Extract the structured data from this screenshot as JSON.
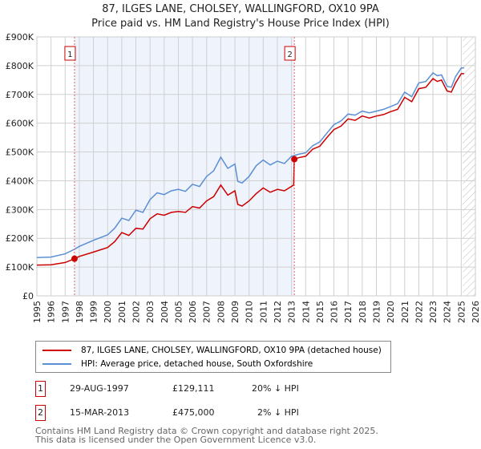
{
  "chart_data": {
    "type": "line",
    "title": "87, ILGES LANE, CHOLSEY, WALLINGFORD, OX10 9PA",
    "subtitle": "Price paid vs. HM Land Registry's House Price Index (HPI)",
    "xlim": [
      1995,
      2026
    ],
    "ylim": [
      0,
      900000
    ],
    "yticks": [
      {
        "v": 0,
        "label": "£0"
      },
      {
        "v": 100000,
        "label": "£100K"
      },
      {
        "v": 200000,
        "label": "£200K"
      },
      {
        "v": 300000,
        "label": "£300K"
      },
      {
        "v": 400000,
        "label": "£400K"
      },
      {
        "v": 500000,
        "label": "£500K"
      },
      {
        "v": 600000,
        "label": "£600K"
      },
      {
        "v": 700000,
        "label": "£700K"
      },
      {
        "v": 800000,
        "label": "£800K"
      },
      {
        "v": 900000,
        "label": "£900K"
      }
    ],
    "xticks": [
      "1995",
      "1996",
      "1997",
      "1998",
      "1999",
      "2000",
      "2001",
      "2002",
      "2003",
      "2004",
      "2005",
      "2006",
      "2007",
      "2008",
      "2009",
      "2010",
      "2011",
      "2012",
      "2013",
      "2014",
      "2015",
      "2016",
      "2017",
      "2018",
      "2019",
      "2020",
      "2021",
      "2022",
      "2023",
      "2024",
      "2025",
      "2026"
    ],
    "grid": true,
    "shaded_range": [
      1997.66,
      2013.2
    ],
    "hatched_from": 2025.1,
    "series": [
      {
        "name": "87, ILGES LANE, CHOLSEY, WALLINGFORD, OX10 9PA (detached house)",
        "color": "#cc0000",
        "x": [
          1995,
          1996,
          1997,
          1997.66,
          1998,
          1999,
          2000,
          2000.5,
          2001,
          2001.5,
          2002,
          2002.5,
          2003,
          2003.5,
          2004,
          2004.5,
          2005,
          2005.5,
          2006,
          2006.5,
          2007,
          2007.5,
          2008,
          2008.5,
          2009,
          2009.2,
          2009.5,
          2010,
          2010.5,
          2011,
          2011.5,
          2012,
          2012.5,
          2013.15,
          2013.2,
          2013.5,
          2014,
          2014.5,
          2015,
          2015.5,
          2016,
          2016.5,
          2017,
          2017.5,
          2018,
          2018.5,
          2019,
          2019.5,
          2020,
          2020.5,
          2021,
          2021.5,
          2022,
          2022.5,
          2023,
          2023.3,
          2023.6,
          2024,
          2024.3,
          2024.6,
          2025,
          2025.2
        ],
        "y": [
          107000,
          108000,
          116000,
          129111,
          137000,
          152000,
          168000,
          188000,
          220000,
          210000,
          235000,
          232000,
          268000,
          285000,
          280000,
          290000,
          293000,
          290000,
          310000,
          305000,
          330000,
          345000,
          385000,
          350000,
          365000,
          318000,
          312000,
          330000,
          355000,
          375000,
          360000,
          370000,
          365000,
          385000,
          475000,
          480000,
          485000,
          510000,
          520000,
          550000,
          578000,
          590000,
          615000,
          610000,
          625000,
          618000,
          625000,
          630000,
          640000,
          648000,
          690000,
          675000,
          720000,
          725000,
          755000,
          745000,
          750000,
          712000,
          708000,
          740000,
          772000,
          772000
        ]
      },
      {
        "name": "HPI: Average price, detached house, South Oxfordshire",
        "color": "#5b8fd4",
        "x": [
          1995,
          1996,
          1997,
          1997.66,
          1998,
          1999,
          2000,
          2000.5,
          2001,
          2001.5,
          2002,
          2002.5,
          2003,
          2003.5,
          2004,
          2004.5,
          2005,
          2005.5,
          2006,
          2006.5,
          2007,
          2007.5,
          2008,
          2008.5,
          2009,
          2009.2,
          2009.5,
          2010,
          2010.5,
          2011,
          2011.5,
          2012,
          2012.5,
          2013,
          2013.5,
          2014,
          2014.5,
          2015,
          2015.5,
          2016,
          2016.5,
          2017,
          2017.5,
          2018,
          2018.5,
          2019,
          2019.5,
          2020,
          2020.5,
          2021,
          2021.5,
          2022,
          2022.5,
          2023,
          2023.3,
          2023.6,
          2024,
          2024.3,
          2024.6,
          2025,
          2025.2
        ],
        "y": [
          133000,
          135000,
          146000,
          162000,
          172000,
          193000,
          212000,
          235000,
          270000,
          262000,
          298000,
          290000,
          335000,
          358000,
          352000,
          365000,
          370000,
          363000,
          388000,
          380000,
          415000,
          435000,
          482000,
          443000,
          458000,
          398000,
          392000,
          415000,
          452000,
          472000,
          455000,
          468000,
          460000,
          485000,
          492000,
          497000,
          522000,
          535000,
          565000,
          595000,
          608000,
          632000,
          628000,
          642000,
          636000,
          642000,
          648000,
          658000,
          668000,
          708000,
          692000,
          740000,
          745000,
          775000,
          765000,
          768000,
          728000,
          725000,
          762000,
          792000,
          792000
        ]
      }
    ],
    "markers": [
      {
        "id": "1",
        "x": 1997.66,
        "y": 129111
      },
      {
        "id": "2",
        "x": 2013.2,
        "y": 475000
      }
    ]
  },
  "legend": {
    "red": "87, ILGES LANE, CHOLSEY, WALLINGFORD, OX10 9PA (detached house)",
    "blue": "HPI: Average price, detached house, South Oxfordshire"
  },
  "transactions": [
    {
      "id": "1",
      "date": "29-AUG-1997",
      "price": "£129,111",
      "hpi": "20% ↓ HPI"
    },
    {
      "id": "2",
      "date": "15-MAR-2013",
      "price": "£475,000",
      "hpi": "2% ↓ HPI"
    }
  ],
  "footer": {
    "line1": "Contains HM Land Registry data © Crown copyright and database right 2025.",
    "line2": "This data is licensed under the Open Government Licence v3.0."
  }
}
